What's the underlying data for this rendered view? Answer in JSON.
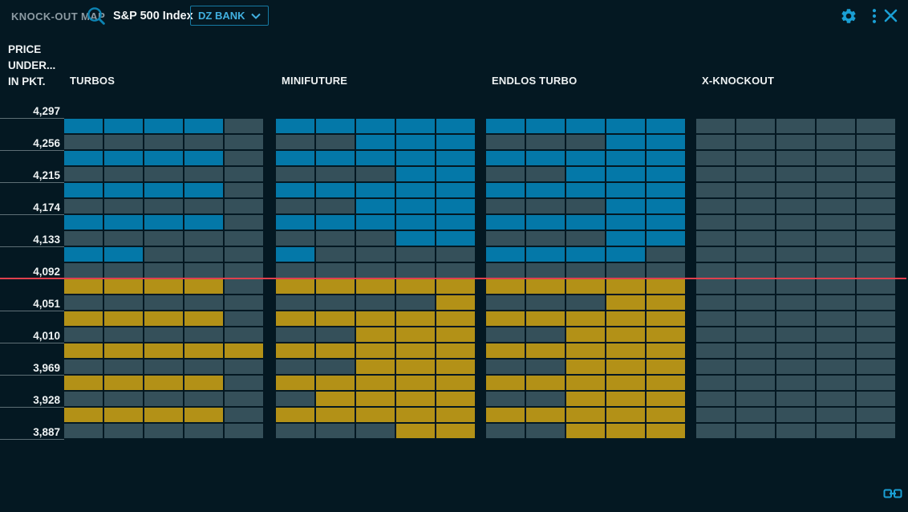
{
  "window": {
    "title": "KNOCK-OUT MAP"
  },
  "header": {
    "underlying": "S&P 500 Index",
    "issuer_dropdown": "DZ BANK"
  },
  "axis": {
    "title_lines": [
      "PRICE",
      "UNDER...",
      "IN PKT."
    ],
    "prices": [
      "4,297",
      "4,256",
      "4,215",
      "4,174",
      "4,133",
      "4,092",
      "4,051",
      "4,010",
      "3,969",
      "3,928",
      "3,887"
    ]
  },
  "chart_data": {
    "type": "heatmap",
    "title": "KNOCK-OUT MAP",
    "underlying": "S&P 500 Index",
    "issuer": "DZ BANK",
    "price_ticks": [
      "4,297",
      "4,256",
      "4,215",
      "4,174",
      "4,133",
      "4,092",
      "4,051",
      "4,010",
      "3,969",
      "3,928",
      "3,887"
    ],
    "tick_step_points": 41,
    "rows_per_tick_interval": 2,
    "red_line_at_tick": "4,092",
    "cell_color_legend": {
      "B": "blue knockout above price",
      "Y": "yellow knockout below price",
      "G": "gray empty slot"
    },
    "groups": [
      {
        "label": "TURBOS",
        "rows": [
          "BBBBG",
          "GGGGG",
          "BBBBG",
          "GGGGG",
          "BBBBG",
          "GGGGG",
          "BBBBG",
          "GGGGG",
          "BBGGG",
          "GGGGG",
          "YYYYG",
          "GGGGG",
          "YYYYG",
          "GGGGG",
          "YYYYY",
          "GGGGG",
          "YYYYG",
          "GGGGG",
          "YYYYG",
          "GGGGG"
        ]
      },
      {
        "label": "MINIFUTURE",
        "rows": [
          "BBBBB",
          "GGBBB",
          "BBBBB",
          "GGGBB",
          "BBBBB",
          "GGBBB",
          "BBBBB",
          "GGGBB",
          "BGGGG",
          "GGGGG",
          "YYYYY",
          "GGGGY",
          "YYYYY",
          "GGYYY",
          "YYYYY",
          "GGYYY",
          "YYYYY",
          "GYYYY",
          "YYYYY",
          "GGGYY"
        ]
      },
      {
        "label": "ENDLOS TURBO",
        "rows": [
          "BBBBB",
          "GGGBB",
          "BBBBB",
          "GGBBB",
          "BBBBB",
          "GGGBB",
          "BBBBB",
          "GGGBB",
          "BBBBG",
          "GGGGG",
          "YYYYY",
          "GGGYY",
          "YYYYY",
          "GGYYY",
          "YYYYY",
          "GGYYY",
          "YYYYY",
          "GGYYY",
          "YYYYY",
          "GGYYY"
        ]
      },
      {
        "label": "X-KNOCKOUT",
        "rows": [
          "GGGGG",
          "GGGGG",
          "GGGGG",
          "GGGGG",
          "GGGGG",
          "GGGGG",
          "GGGGG",
          "GGGGG",
          "GGGGG",
          "GGGGG",
          "GGGGG",
          "GGGGG",
          "GGGGG",
          "GGGGG",
          "GGGGG",
          "GGGGG",
          "GGGGG",
          "GGGGG",
          "GGGGG",
          "GGGGG"
        ]
      }
    ]
  },
  "colors": {
    "background": "#041822",
    "cell_blue": "#0478a8",
    "cell_gray": "#35505a",
    "cell_yellow": "#b39117",
    "red_line": "#e0404e",
    "accent_blue": "#1a9fd4",
    "title_gray": "#8d9ba3",
    "tick_line": "#5d6e75",
    "text_white": "#eef2f3",
    "issuer_border": "#1679a2",
    "issuer_text": "#41b0e0"
  }
}
